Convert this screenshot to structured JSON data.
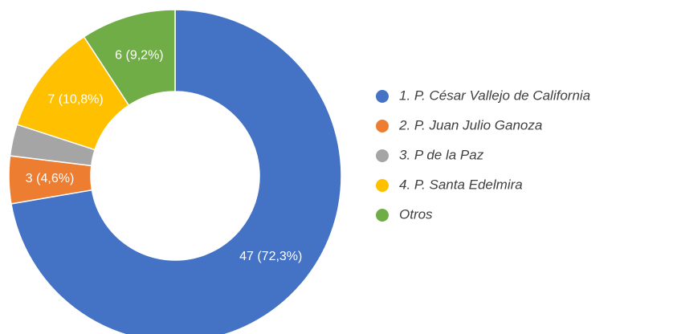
{
  "chart_data": {
    "type": "donut",
    "categories": [
      "1. P. César Vallejo de California",
      "2. P. Juan Julio Ganoza",
      "3. P de la Paz",
      "4. P. Santa Edelmira",
      "Otros"
    ],
    "values": [
      47,
      3,
      2,
      7,
      6
    ],
    "value_labels": [
      "47 (72,3%)",
      "3 (4,6%)",
      null,
      "7 (10,8%)",
      "6 (9,2%)"
    ],
    "colors": [
      "#4472c4",
      "#ed7d31",
      "#a5a5a5",
      "#ffc000",
      "#70ad47"
    ],
    "legend": "right"
  }
}
